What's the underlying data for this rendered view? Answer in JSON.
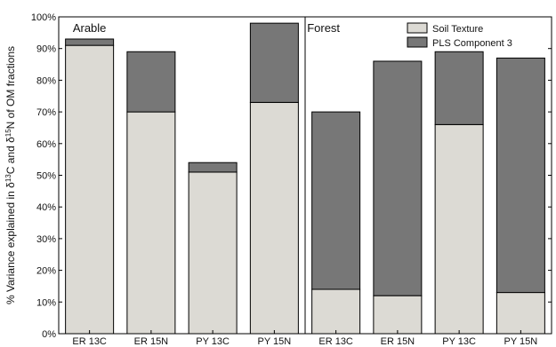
{
  "chart_data": {
    "type": "bar",
    "stacked": true,
    "ylabel_prefix": "% Variance explained in  δ",
    "ylabel_sup1": "13",
    "ylabel_mid": "C and δ",
    "ylabel_sup2": "15",
    "ylabel_suffix": "N of OM fractions",
    "ylim": [
      0,
      100
    ],
    "yticks": [
      "0%",
      "10%",
      "20%",
      "30%",
      "40%",
      "50%",
      "60%",
      "70%",
      "80%",
      "90%",
      "100%"
    ],
    "categories": [
      "ER 13C",
      "ER 15N",
      "PY 13C",
      "PY 15N",
      "ER 13C",
      "ER 15N",
      "PY 13C",
      "PY 15N"
    ],
    "groups": [
      {
        "label": "Arable",
        "start": 0,
        "end": 3
      },
      {
        "label": "Forest",
        "start": 4,
        "end": 7
      }
    ],
    "series": [
      {
        "name": "Soil Texture",
        "color": "#dcdad4",
        "values": [
          91,
          70,
          51,
          73,
          14,
          12,
          66,
          13
        ]
      },
      {
        "name": "PLS Component 3",
        "color": "#777777",
        "values": [
          2,
          19,
          3,
          25,
          56,
          74,
          23,
          74
        ]
      }
    ],
    "legend_position": "top-right",
    "grid": false
  }
}
